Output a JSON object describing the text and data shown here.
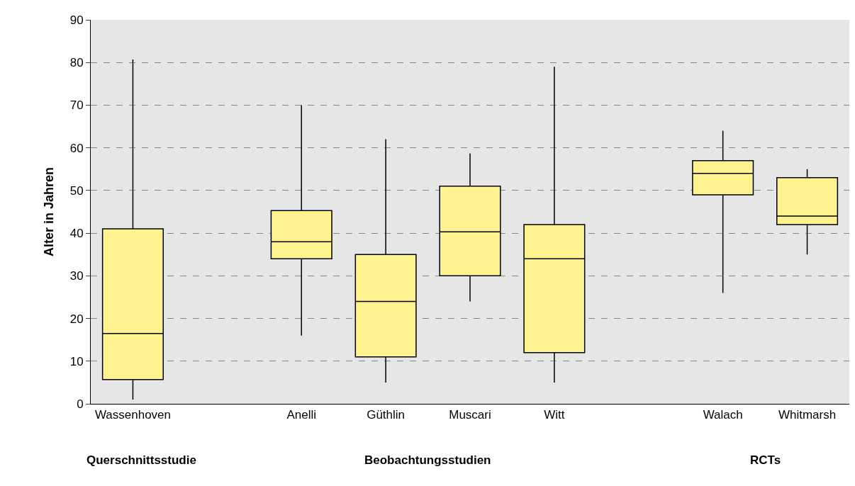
{
  "chart_data": {
    "type": "box",
    "ylabel": "Alter in Jahren",
    "categories": [
      "Wassenhoven",
      null,
      "Anelli",
      "Güthlin",
      "Muscari",
      "Witt",
      null,
      "Walach",
      "Whitmarsh"
    ],
    "boxes": [
      {
        "low": 1,
        "q1": 5.7,
        "median": 16.5,
        "q3": 41,
        "high": 80.7
      },
      null,
      {
        "low": 16,
        "q1": 34,
        "median": 38,
        "q3": 45.3,
        "high": 70
      },
      {
        "low": 5,
        "q1": 11,
        "median": 24,
        "q3": 35,
        "high": 62
      },
      {
        "low": 24,
        "q1": 30,
        "median": 40.3,
        "q3": 51,
        "high": 58.7
      },
      {
        "low": 5,
        "q1": 12,
        "median": 34,
        "q3": 42,
        "high": 79
      },
      null,
      {
        "low": 26,
        "q1": 49,
        "median": 54,
        "q3": 57,
        "high": 64
      },
      {
        "low": 35,
        "q1": 42,
        "median": 44,
        "q3": 53,
        "high": 55
      }
    ],
    "color": "#fff38f",
    "ylim": [
      0,
      90
    ],
    "yticks": [
      0,
      10,
      20,
      30,
      40,
      50,
      60,
      70,
      80,
      90
    ],
    "grid": "y",
    "legend": false,
    "annotations": [
      "Querschnittsstudie",
      "Beobachtungsstudien",
      "RCTs"
    ]
  }
}
